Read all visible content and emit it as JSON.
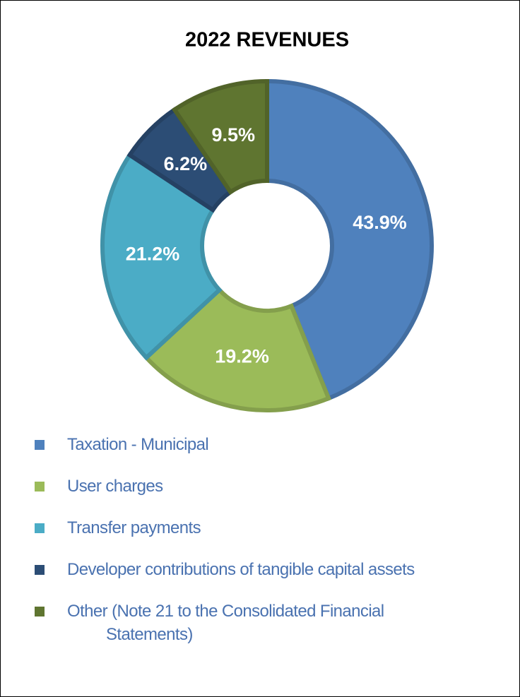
{
  "chart_data": {
    "type": "donut",
    "title": "2022 REVENUES",
    "categories": [
      "Taxation - Municipal",
      "User charges",
      "Transfer payments",
      "Developer contributions of tangible capital assets",
      "Other (Note 21 to the Consolidated Financial Statements)"
    ],
    "values": [
      43.9,
      19.2,
      21.2,
      6.2,
      9.5
    ],
    "value_labels": [
      "43.9%",
      "19.2%",
      "21.2%",
      "6.2%",
      "9.5%"
    ],
    "colors": [
      "#4f81bd",
      "#9bbb59",
      "#4bacc6",
      "#2c4d75",
      "#5f7530"
    ],
    "legend": "bottom"
  }
}
